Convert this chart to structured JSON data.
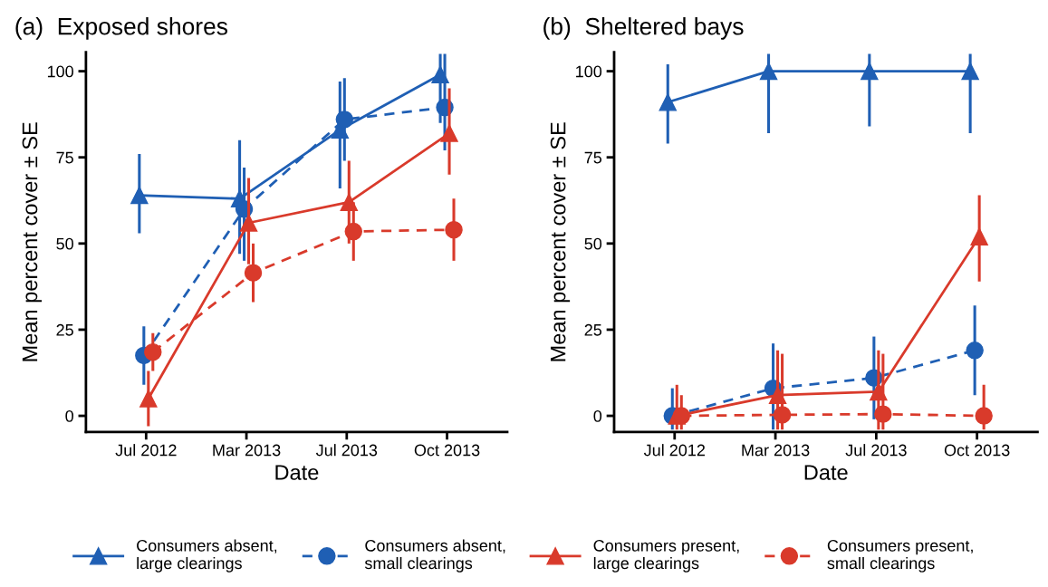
{
  "chart_data": [
    {
      "type": "line",
      "title": "(a)  Exposed shores",
      "xlabel": "Date",
      "ylabel": "Mean percent cover ± SE",
      "categories": [
        "Jul 2012",
        "Mar 2013",
        "Jul 2013",
        "Oct 2013"
      ],
      "ylim": [
        -4.7,
        105.5
      ],
      "yticks": [
        0,
        25,
        50,
        75,
        100
      ],
      "grid": false,
      "legend": "bottom",
      "series": [
        {
          "name": "Consumers absent,\nlarge clearings",
          "color": "#1f5fb4",
          "marker": "triangle",
          "line_style": "solid",
          "values": [
            64,
            63,
            83,
            99
          ],
          "errors": [
            [
              53,
              76
            ],
            [
              47,
              80
            ],
            [
              66,
              97
            ],
            [
              85,
              105
            ]
          ]
        },
        {
          "name": "Consumers absent,\nsmall clearings",
          "color": "#1f5fb4",
          "marker": "circle",
          "line_style": "dashed",
          "values": [
            17.5,
            60,
            86,
            89.5
          ],
          "errors": [
            [
              9,
              26
            ],
            [
              45,
              72
            ],
            [
              74,
              98
            ],
            [
              77,
              105
            ]
          ]
        },
        {
          "name": "Consumers present,\nlarge clearings",
          "color": "#d93a2b",
          "marker": "triangle",
          "line_style": "solid",
          "values": [
            5,
            56,
            62,
            82
          ],
          "errors": [
            [
              -3,
              13
            ],
            [
              44,
              69
            ],
            [
              50,
              74
            ],
            [
              70,
              95
            ]
          ]
        },
        {
          "name": "Consumers present,\nsmall clearings",
          "color": "#d93a2b",
          "marker": "circle",
          "line_style": "dashed",
          "values": [
            18.5,
            41.5,
            53.5,
            54
          ],
          "errors": [
            [
              13,
              24
            ],
            [
              33,
              50
            ],
            [
              45,
              62
            ],
            [
              45,
              63
            ]
          ]
        }
      ]
    },
    {
      "type": "line",
      "title": "(b)  Sheltered bays",
      "xlabel": "Date",
      "ylabel": "Mean percent cover ± SE",
      "categories": [
        "Jul 2012",
        "Mar 2013",
        "Jul 2013",
        "Oct 2013"
      ],
      "ylim": [
        -4.7,
        105.5
      ],
      "yticks": [
        0,
        25,
        50,
        75,
        100
      ],
      "grid": false,
      "series": [
        {
          "name": "Consumers absent,\nlarge clearings",
          "color": "#1f5fb4",
          "marker": "triangle",
          "line_style": "solid",
          "values": [
            91,
            100,
            100,
            100
          ],
          "errors": [
            [
              79,
              102
            ],
            [
              82,
              105
            ],
            [
              84,
              105
            ],
            [
              82,
              105
            ]
          ]
        },
        {
          "name": "Consumers absent,\nsmall clearings",
          "color": "#1f5fb4",
          "marker": "circle",
          "line_style": "dashed",
          "values": [
            0,
            8,
            11,
            19
          ],
          "errors": [
            [
              -4,
              8
            ],
            [
              -4,
              21
            ],
            [
              -1,
              23
            ],
            [
              6,
              32
            ]
          ]
        },
        {
          "name": "Consumers present,\nlarge clearings",
          "color": "#d93a2b",
          "marker": "triangle",
          "line_style": "solid",
          "values": [
            0,
            6,
            7,
            52
          ],
          "errors": [
            [
              -4,
              9
            ],
            [
              -4,
              19
            ],
            [
              -4,
              19
            ],
            [
              39,
              64
            ]
          ]
        },
        {
          "name": "Consumers present,\nsmall clearings",
          "color": "#d93a2b",
          "marker": "circle",
          "line_style": "dashed",
          "values": [
            0,
            0.3,
            0.5,
            0
          ],
          "errors": [
            [
              -4,
              6
            ],
            [
              -4,
              18
            ],
            [
              -4,
              18
            ],
            [
              -4,
              9
            ]
          ]
        }
      ]
    }
  ]
}
